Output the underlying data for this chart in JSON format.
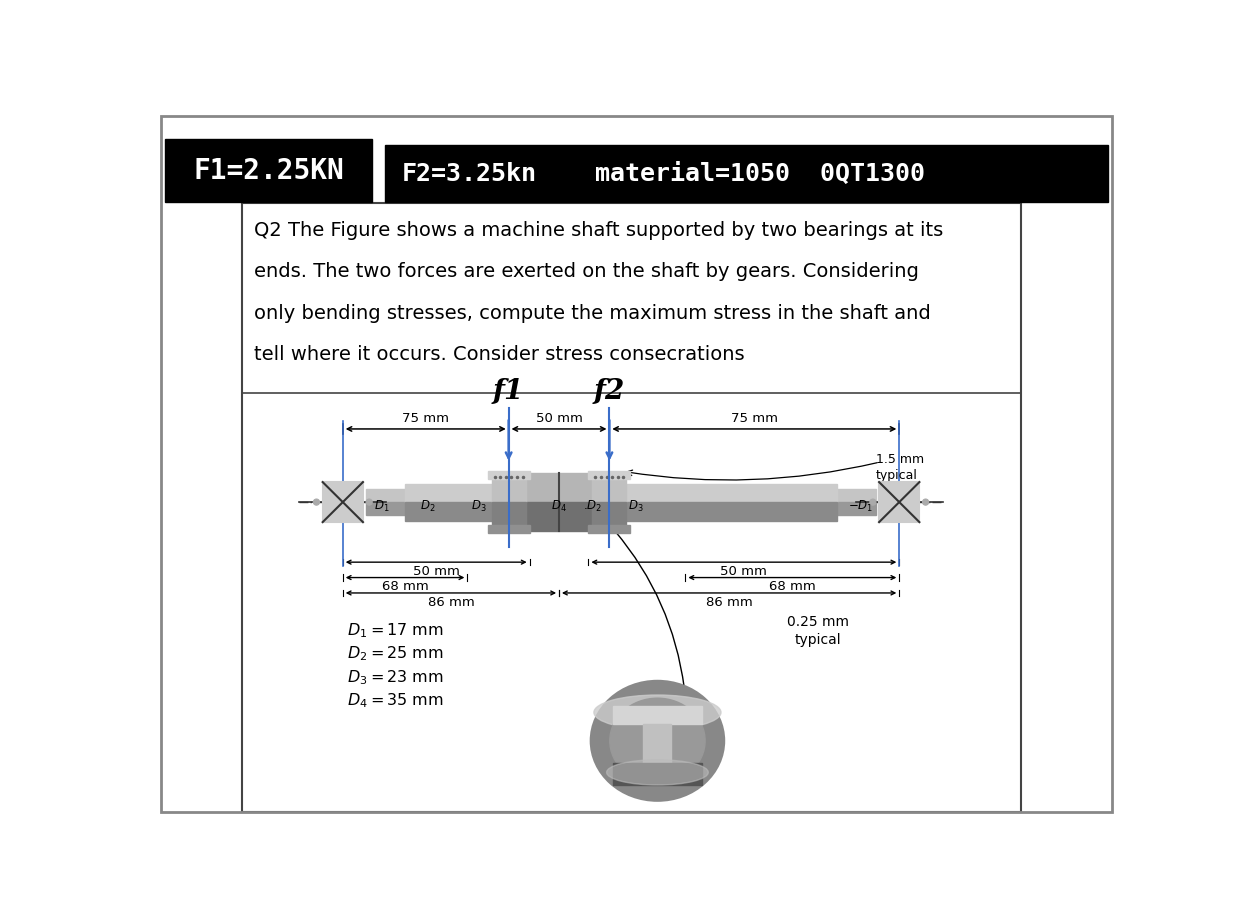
{
  "bg_color": "#ffffff",
  "header_bg": "#000000",
  "header_text_color": "#ffffff",
  "header_font": "monospace",
  "header_f1": "F1=2.25KN",
  "header_f2": "F2=3.25kn",
  "header_material": "material=1050  0QT1300",
  "q_line1": "Q2 The Figure shows a machine shaft supported by two bearings at its",
  "q_line2": "ends. The two forces are exerted on the shaft by gears. Considering",
  "q_line3": "only bending stresses, compute the maximum stress in the shaft and",
  "q_line4": "tell where it occurs. Consider stress consecrations",
  "dim_label1": "$D_1 = 17$ mm",
  "dim_label2": "$D_2 = 25$ mm",
  "dim_label3": "$D_3 = 23$ mm",
  "dim_label4": "$D_4 = 35$ mm",
  "note_1p5": "1.5 mm\ntypical",
  "note_0p25": "0.25 mm\ntypical",
  "shaft_lt": "#c8c8c8",
  "shaft_mid": "#aaaaaa",
  "shaft_dk": "#707070",
  "hub_lt": "#b0b0b0",
  "hub_dk": "#606060",
  "bearing_fill": "#cccccc",
  "blue": "#3a6dc9"
}
